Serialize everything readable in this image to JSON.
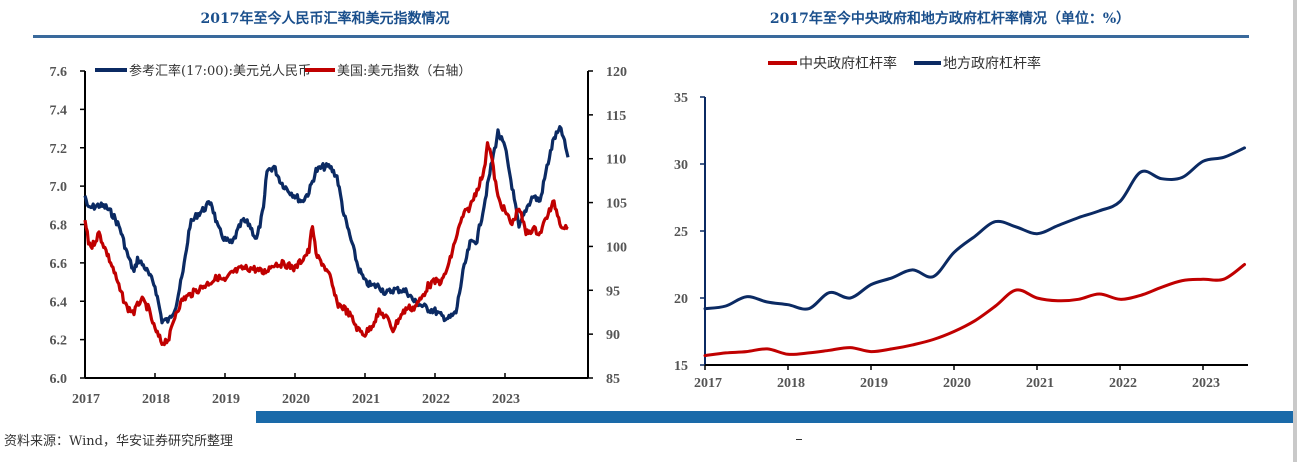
{
  "source_note": "资料来源：Wind，华安证券研究所整理",
  "colors": {
    "navy": "#0b2a63",
    "red": "#c00000",
    "title": "#1a4f8c",
    "bar": "#1a6aa9"
  },
  "chart_data": [
    {
      "type": "line",
      "title": "2017年至今人民币汇率和美元指数情况",
      "xlabel": "",
      "ylabel": "",
      "xlim": [
        2017,
        2023.92
      ],
      "ylim": [
        6.0,
        7.6
      ],
      "y2lim": [
        85,
        120
      ],
      "grid": false,
      "legend_position": "top",
      "x_tick_labels": [
        "2017",
        "2018",
        "2019",
        "2020",
        "2021",
        "2022",
        "2023"
      ],
      "y_tick_labels": [
        "6.0",
        "6.2",
        "6.4",
        "6.6",
        "6.8",
        "7.0",
        "7.2",
        "7.4",
        "7.6"
      ],
      "y2_tick_labels": [
        "85",
        "90",
        "95",
        "100",
        "105",
        "110",
        "115",
        "120"
      ],
      "series": [
        {
          "name": "参考汇率(17:00):美元兑人民币",
          "axis": "left",
          "color": "#0b2a63",
          "x": [
            2017.0,
            2017.05,
            2017.1,
            2017.2,
            2017.3,
            2017.4,
            2017.5,
            2017.6,
            2017.7,
            2017.75,
            2017.85,
            2018.0,
            2018.1,
            2018.2,
            2018.3,
            2018.4,
            2018.5,
            2018.6,
            2018.7,
            2018.8,
            2018.9,
            2019.0,
            2019.1,
            2019.25,
            2019.35,
            2019.45,
            2019.55,
            2019.6,
            2019.7,
            2019.8,
            2019.9,
            2020.0,
            2020.1,
            2020.2,
            2020.3,
            2020.4,
            2020.5,
            2020.6,
            2020.7,
            2020.8,
            2020.9,
            2021.0,
            2021.1,
            2021.2,
            2021.3,
            2021.4,
            2021.5,
            2021.6,
            2021.7,
            2021.8,
            2021.9,
            2022.0,
            2022.1,
            2022.2,
            2022.3,
            2022.4,
            2022.5,
            2022.6,
            2022.7,
            2022.8,
            2022.9,
            2023.0,
            2023.1,
            2023.2,
            2023.3,
            2023.4,
            2023.5,
            2023.6,
            2023.7,
            2023.8,
            2023.9
          ],
          "values": [
            6.95,
            6.88,
            6.89,
            6.9,
            6.89,
            6.85,
            6.78,
            6.65,
            6.55,
            6.62,
            6.58,
            6.48,
            6.3,
            6.3,
            6.38,
            6.55,
            6.8,
            6.85,
            6.88,
            6.92,
            6.78,
            6.72,
            6.7,
            6.82,
            6.8,
            6.72,
            6.88,
            7.08,
            7.1,
            7.02,
            6.98,
            6.95,
            6.92,
            6.97,
            7.08,
            7.1,
            7.1,
            7.05,
            6.85,
            6.72,
            6.58,
            6.5,
            6.48,
            6.48,
            6.44,
            6.46,
            6.46,
            6.45,
            6.4,
            6.38,
            6.36,
            6.35,
            6.32,
            6.31,
            6.34,
            6.55,
            6.7,
            6.72,
            6.9,
            7.1,
            7.28,
            7.2,
            7.0,
            6.78,
            6.88,
            6.95,
            6.92,
            7.1,
            7.25,
            7.3,
            7.15
          ]
        },
        {
          "name": "美国:美元指数（右轴）",
          "axis": "right",
          "color": "#c00000",
          "x": [
            2017.0,
            2017.05,
            2017.1,
            2017.2,
            2017.3,
            2017.4,
            2017.5,
            2017.6,
            2017.7,
            2017.8,
            2017.9,
            2018.0,
            2018.1,
            2018.2,
            2018.3,
            2018.4,
            2018.5,
            2018.6,
            2018.7,
            2018.8,
            2018.9,
            2019.0,
            2019.1,
            2019.25,
            2019.4,
            2019.55,
            2019.7,
            2019.85,
            2020.0,
            2020.1,
            2020.2,
            2020.25,
            2020.3,
            2020.4,
            2020.5,
            2020.6,
            2020.7,
            2020.8,
            2020.9,
            2021.0,
            2021.1,
            2021.2,
            2021.3,
            2021.4,
            2021.5,
            2021.6,
            2021.7,
            2021.8,
            2021.9,
            2022.0,
            2022.1,
            2022.2,
            2022.3,
            2022.4,
            2022.5,
            2022.6,
            2022.7,
            2022.75,
            2022.8,
            2022.9,
            2023.0,
            2023.1,
            2023.2,
            2023.3,
            2023.4,
            2023.5,
            2023.6,
            2023.7,
            2023.8,
            2023.9
          ],
          "values": [
            103.0,
            100.5,
            100.0,
            101.5,
            99.5,
            97.5,
            95.0,
            93.0,
            92.5,
            94.0,
            93.0,
            90.5,
            89.0,
            89.5,
            92.5,
            94.0,
            94.5,
            95.0,
            95.5,
            96.0,
            96.5,
            96.0,
            97.0,
            97.5,
            97.5,
            97.0,
            98.0,
            98.0,
            97.5,
            98.5,
            99.5,
            102.5,
            99.0,
            98.0,
            96.5,
            93.5,
            93.0,
            92.0,
            90.5,
            90.0,
            91.0,
            92.5,
            92.0,
            90.5,
            92.0,
            93.0,
            93.0,
            94.0,
            95.5,
            96.0,
            96.0,
            98.0,
            101.0,
            103.5,
            104.5,
            106.5,
            108.5,
            112.0,
            110.5,
            105.5,
            104.0,
            102.5,
            104.5,
            101.5,
            102.0,
            101.5,
            103.5,
            105.0,
            102.5,
            102.0
          ]
        }
      ]
    },
    {
      "type": "line",
      "title": "2017年至今中央政府和地方政府杠杆率情况（单位：%）",
      "xlabel": "",
      "ylabel": "",
      "xlim": [
        2017,
        2023.5
      ],
      "ylim": [
        15,
        35
      ],
      "grid": false,
      "legend_position": "top",
      "x_tick_labels": [
        "2017",
        "2018",
        "2019",
        "2020",
        "2021",
        "2022",
        "2023"
      ],
      "y_tick_labels": [
        "15",
        "20",
        "25",
        "30",
        "35"
      ],
      "series": [
        {
          "name": "中央政府杠杆率",
          "color": "#c00000",
          "x": [
            2017.0,
            2017.25,
            2017.5,
            2017.75,
            2018.0,
            2018.25,
            2018.5,
            2018.75,
            2019.0,
            2019.25,
            2019.5,
            2019.75,
            2020.0,
            2020.25,
            2020.5,
            2020.75,
            2021.0,
            2021.25,
            2021.5,
            2021.75,
            2022.0,
            2022.25,
            2022.5,
            2022.75,
            2023.0,
            2023.25,
            2023.5
          ],
          "values": [
            15.7,
            15.9,
            16.0,
            16.2,
            15.8,
            15.9,
            16.1,
            16.3,
            16.0,
            16.2,
            16.5,
            16.9,
            17.5,
            18.3,
            19.4,
            20.6,
            20.0,
            19.8,
            19.9,
            20.3,
            19.9,
            20.2,
            20.8,
            21.3,
            21.4,
            21.4,
            22.5
          ]
        },
        {
          "name": "地方政府杠杆率",
          "color": "#0b2a63",
          "x": [
            2017.0,
            2017.25,
            2017.5,
            2017.75,
            2018.0,
            2018.25,
            2018.5,
            2018.75,
            2019.0,
            2019.25,
            2019.5,
            2019.75,
            2020.0,
            2020.25,
            2020.5,
            2020.75,
            2021.0,
            2021.25,
            2021.5,
            2021.75,
            2022.0,
            2022.25,
            2022.5,
            2022.75,
            2023.0,
            2023.25,
            2023.5
          ],
          "values": [
            19.2,
            19.4,
            20.1,
            19.7,
            19.5,
            19.2,
            20.4,
            20.0,
            21.0,
            21.5,
            22.1,
            21.6,
            23.4,
            24.6,
            25.7,
            25.3,
            24.8,
            25.4,
            26.0,
            26.5,
            27.2,
            29.4,
            28.9,
            29.0,
            30.2,
            30.5,
            31.2
          ]
        }
      ]
    }
  ]
}
